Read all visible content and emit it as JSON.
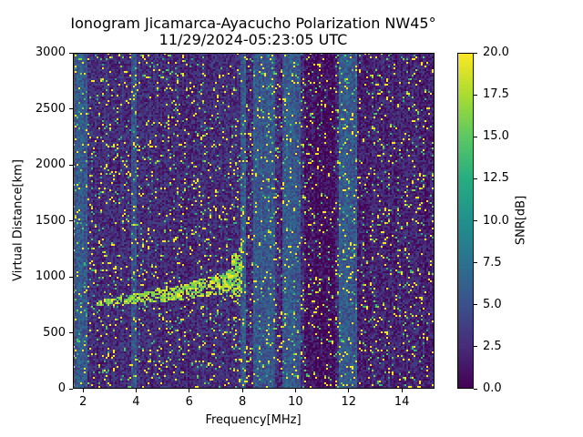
{
  "chart_data": {
    "type": "heatmap",
    "title": "Ionogram Jicamarca-Ayacucho Polarization NW45°",
    "subtitle": "11/29/2024-05:23:05 UTC",
    "xlabel": "Frequency[MHz]",
    "ylabel": "Virtual Distance[km]",
    "xlim": [
      1.62,
      15.23
    ],
    "ylim": [
      0,
      3000
    ],
    "xticks": [
      2,
      4,
      6,
      8,
      10,
      12,
      14
    ],
    "yticks": [
      0,
      500,
      1000,
      1500,
      2000,
      2500,
      3000
    ],
    "colorbar": {
      "label": "SNR[dB]",
      "colormap": "viridis",
      "range": [
        0.0,
        20.0
      ],
      "ticks": [
        "0.0",
        "2.5",
        "5.0",
        "7.5",
        "10.0",
        "12.5",
        "15.0",
        "17.5",
        "20.0"
      ]
    },
    "grid": false,
    "trace": {
      "description": "Main ionospheric echo trace rising from ~750 km at 2.5 MHz to ~1000-1200 km near 7.8-8.2 MHz",
      "points": [
        {
          "freq_mhz": 2.5,
          "distance_km": 760
        },
        {
          "freq_mhz": 3.5,
          "distance_km": 790
        },
        {
          "freq_mhz": 4.5,
          "distance_km": 820
        },
        {
          "freq_mhz": 5.5,
          "distance_km": 850
        },
        {
          "freq_mhz": 6.5,
          "distance_km": 900
        },
        {
          "freq_mhz": 7.2,
          "distance_km": 930
        },
        {
          "freq_mhz": 7.8,
          "distance_km": 1000
        },
        {
          "freq_mhz": 8.0,
          "distance_km": 1100
        }
      ]
    },
    "bands": [
      {
        "freq_range_mhz": [
          1.62,
          2.2
        ],
        "level": "elevated"
      },
      {
        "freq_range_mhz": [
          3.8,
          4.0
        ],
        "level": "elevated"
      },
      {
        "freq_range_mhz": [
          7.9,
          8.1
        ],
        "level": "elevated"
      },
      {
        "freq_range_mhz": [
          8.4,
          9.2
        ],
        "level": "elevated"
      },
      {
        "freq_range_mhz": [
          9.5,
          10.2
        ],
        "level": "elevated"
      },
      {
        "freq_range_mhz": [
          10.3,
          11.5
        ],
        "level": "low"
      },
      {
        "freq_range_mhz": [
          11.6,
          12.3
        ],
        "level": "elevated"
      }
    ]
  }
}
